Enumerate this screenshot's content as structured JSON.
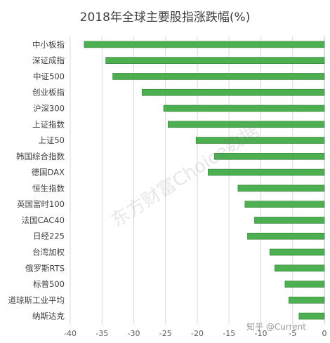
{
  "chart_data": {
    "type": "bar",
    "orientation": "horizontal",
    "title": "2018年全球主要股指涨跌幅(%)",
    "xlabel": "",
    "ylabel": "",
    "xlim": [
      -40,
      0
    ],
    "x_ticks": [
      -40,
      -35,
      -30,
      -25,
      -20,
      -15,
      -10,
      -5,
      0
    ],
    "grid": "vertical",
    "bar_color": "#4caf50",
    "categories": [
      "中小板指",
      "深证成指",
      "中证500",
      "创业板指",
      "沪深300",
      "上证指数",
      "上证50",
      "韩国综合指数",
      "德国DAX",
      "恒生指数",
      "英国富时100",
      "法国CAC40",
      "日经225",
      "台湾加权",
      "俄罗斯RTS",
      "标普500",
      "道琼斯工业平均",
      "纳斯达克"
    ],
    "values": [
      -37.8,
      -34.4,
      -33.3,
      -28.7,
      -25.3,
      -24.6,
      -20.2,
      -17.3,
      -18.3,
      -13.6,
      -12.5,
      -11.0,
      -12.1,
      -8.6,
      -7.8,
      -6.2,
      -5.6,
      -4.0
    ]
  },
  "watermark": "东方财富Choice数据",
  "credit": "知乎 @Current"
}
